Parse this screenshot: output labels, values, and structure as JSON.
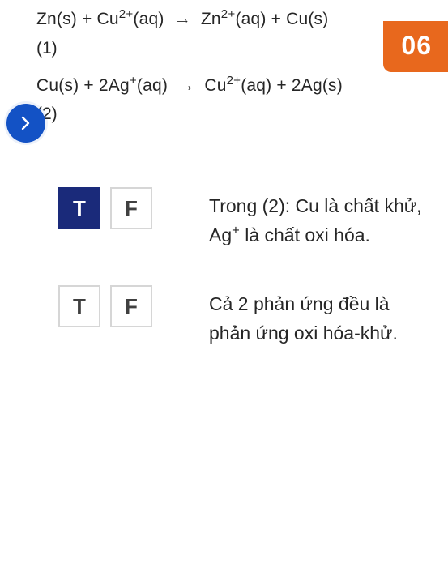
{
  "badge": {
    "label": "06",
    "bg": "#e8681d",
    "fg": "#ffffff"
  },
  "nav": {
    "direction": "right"
  },
  "colors": {
    "accent": "#1352c5",
    "tf_selected_bg": "#1a2a7a",
    "tf_border": "#d6d6d6",
    "text": "#262626"
  },
  "equations": [
    {
      "lhs": "Zn(s) + Cu",
      "lhs_sup": "2+",
      "lhs_tail": "(aq)",
      "rhs": "Zn",
      "rhs_sup": "2+",
      "rhs_tail": "(aq) + Cu(s)",
      "num": "(1)"
    },
    {
      "lhs": "Cu(s) + 2Ag",
      "lhs_sup": "+",
      "lhs_tail": "(aq)",
      "rhs": "Cu",
      "rhs_sup": "2+",
      "rhs_tail": "(aq) + 2Ag(s)",
      "num": "(2)"
    }
  ],
  "tf_labels": {
    "true": "T",
    "false": "F"
  },
  "questions": [
    {
      "text_html": "Trong (2): Cu là chất khử, Ag<sup>+</sup> là chất oxi hóa.",
      "selected": "T"
    },
    {
      "text_html": "Cả 2 phản ứng đều là phản ứng oxi hóa-khử.",
      "selected": null
    }
  ]
}
